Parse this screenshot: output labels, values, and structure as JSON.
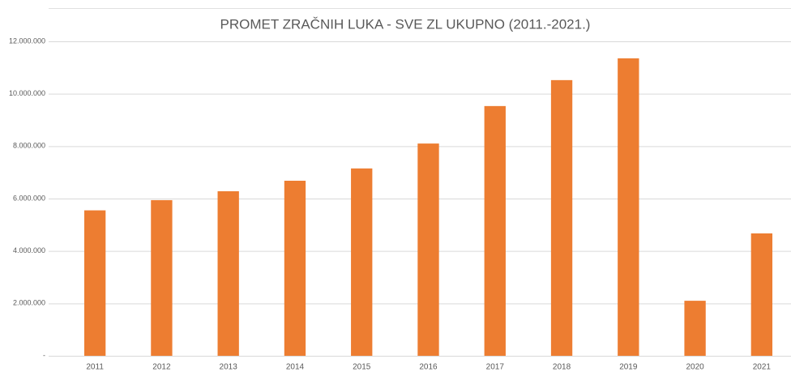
{
  "chart_data": {
    "type": "bar",
    "title": "PROMET ZRAČNIH LUKA - SVE ZL UKUPNO (2011.-2021.)",
    "categories": [
      "2011",
      "2012",
      "2013",
      "2014",
      "2015",
      "2016",
      "2017",
      "2018",
      "2019",
      "2020",
      "2021"
    ],
    "values": [
      5550000,
      5940000,
      6280000,
      6680000,
      7150000,
      8100000,
      9530000,
      10520000,
      11350000,
      2100000,
      4670000
    ],
    "color": "#ed7d31",
    "ylim": [
      0,
      12000000
    ],
    "yticks": [
      {
        "value": 0,
        "label": "-"
      },
      {
        "value": 2000000,
        "label": "2.000.000"
      },
      {
        "value": 4000000,
        "label": "4.000.000"
      },
      {
        "value": 6000000,
        "label": "6.000.000"
      },
      {
        "value": 8000000,
        "label": "8.000.000"
      },
      {
        "value": 10000000,
        "label": "10.000.000"
      },
      {
        "value": 12000000,
        "label": "12.000.000"
      }
    ],
    "grid": true
  }
}
